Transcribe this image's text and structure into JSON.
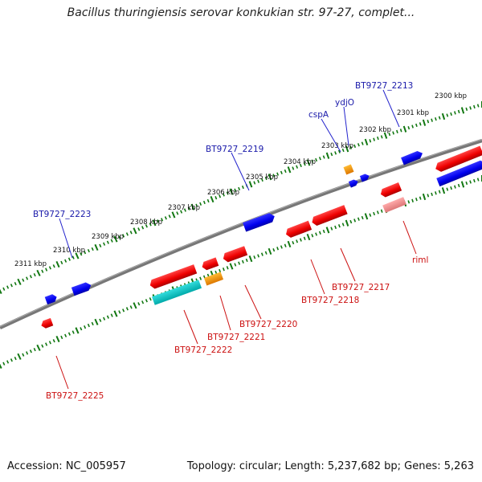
{
  "title": "Bacillus thuringiensis serovar konkukian str. 97-27, complet...",
  "footer": {
    "accession": "Accession: NC_005957",
    "summary": "Topology: circular; Length: 5,237,682 bp; Genes: 5,263"
  },
  "colors": {
    "forward_gene": "#1010ff",
    "reverse_gene": "#ff0000",
    "orange_gene": "#ff9900",
    "cyan_gene": "#00cccc",
    "pink_gene": "#ee8888",
    "backbone": "#777777",
    "tick": "#117711",
    "forward_label": "#1a1aaa",
    "reverse_label": "#cc1111"
  },
  "kbp_ticks": [
    {
      "label": "2311 kbp"
    },
    {
      "label": "2310 kbp"
    },
    {
      "label": "2309 kbp"
    },
    {
      "label": "2308 kbp"
    },
    {
      "label": "2307 kbp"
    },
    {
      "label": "2306 kbp"
    },
    {
      "label": "2305 kbp"
    },
    {
      "label": "2304 kbp"
    },
    {
      "label": "2303 kbp"
    },
    {
      "label": "2302 kbp"
    },
    {
      "label": "2301 kbp"
    },
    {
      "label": "2300 kbp"
    }
  ],
  "gene_labels": {
    "BT9727_2213": "BT9727_2213",
    "ydjO": "ydjO",
    "cspA": "cspA",
    "BT9727_2219": "BT9727_2219",
    "BT9727_2223": "BT9727_2223",
    "riml": "riml",
    "BT9727_2217": "BT9727_2217",
    "BT9727_2218": "BT9727_2218",
    "BT9727_2220": "BT9727_2220",
    "BT9727_2221": "BT9727_2221",
    "BT9727_2222": "BT9727_2222",
    "BT9727_2225": "BT9727_2225"
  }
}
